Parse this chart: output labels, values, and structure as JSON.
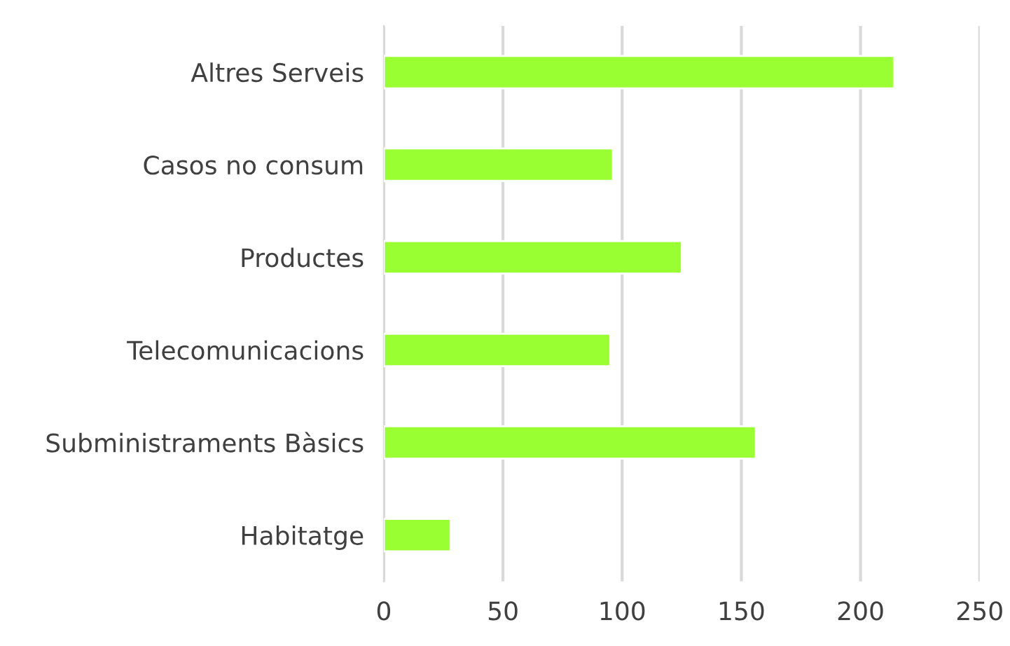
{
  "chart_data": {
    "type": "bar",
    "orientation": "horizontal",
    "categories": [
      "Altres Serveis",
      "Casos no consum",
      "Productes",
      "Telecomunicacions",
      "Subministraments Bàsics",
      "Habitatge"
    ],
    "values": [
      214,
      96,
      125,
      95,
      156,
      28
    ],
    "color": "#99ff33",
    "xlim": [
      0,
      250
    ],
    "xticks": [
      0,
      50,
      100,
      150,
      200,
      250
    ],
    "grid": "x"
  }
}
